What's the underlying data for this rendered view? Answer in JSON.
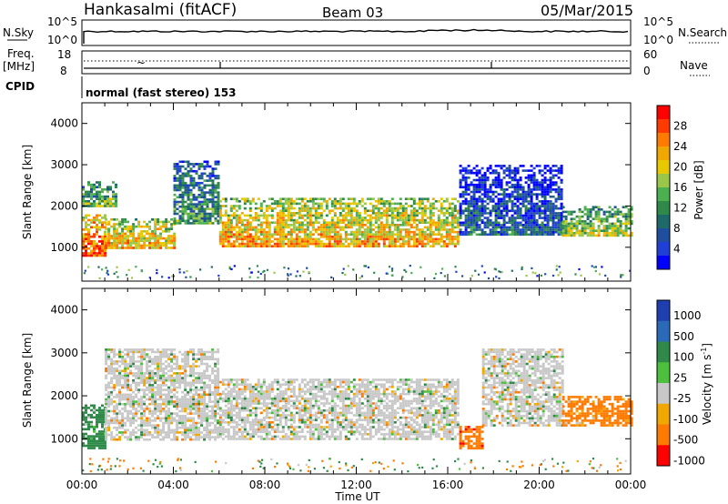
{
  "header": {
    "station": "Hankasalmi (fitACF)",
    "beam": "Beam 03",
    "date": "05/Mar/2015"
  },
  "strips": {
    "nsky_label": "N.Sky",
    "nsearch_label": "N.Search",
    "freq_label_top": "Freq.",
    "freq_label_unit": "[MHz]",
    "nave_label": "Nave",
    "cpid_label": "CPID",
    "cpid_text": "normal (fast stereo) 153",
    "noise_ticks": [
      "10^5",
      "10^0"
    ],
    "noise_ticks_right": [
      "10^5",
      "10^0"
    ],
    "freq_ticks": [
      "18",
      "8"
    ],
    "nave_ticks": [
      "60",
      "0"
    ]
  },
  "axes": {
    "ylabel": "Slant Range [km]",
    "yticks": [
      "4000",
      "3000",
      "2000",
      "1000"
    ],
    "xticks": [
      "00:00",
      "04:00",
      "08:00",
      "12:00",
      "16:00",
      "20:00",
      "00:00"
    ],
    "xlabel": "Time UT"
  },
  "power_colorbar": {
    "label": "Power [dB]",
    "ticks": [
      "28",
      "24",
      "20",
      "16",
      "12",
      "8",
      "4"
    ],
    "colors": [
      "#ff0000",
      "#ff3a00",
      "#ff7a00",
      "#f0a800",
      "#e8c800",
      "#9ac64a",
      "#4caf50",
      "#2f8a4a",
      "#1e6a6a",
      "#1f4e9e",
      "#1f3fd6",
      "#0000ff"
    ]
  },
  "velocity_colorbar": {
    "label": "Velocity [m s^-1]",
    "ticks": [
      "1000",
      "500",
      "100",
      "25",
      "-25",
      "-100",
      "-500",
      "-1000"
    ],
    "colors": [
      "#1f3fb0",
      "#2a6ab8",
      "#2f8a4a",
      "#4cbf3c",
      "#c8c8c8",
      "#f0a800",
      "#ff7a00",
      "#ff0000"
    ]
  },
  "chart_data": [
    {
      "type": "heatmap",
      "title": "Power",
      "xlabel": "Time UT",
      "ylabel": "Slant Range [km]",
      "x_range": [
        "00:00",
        "24:00"
      ],
      "ylim": [
        180,
        4500
      ],
      "colorbar": {
        "label": "Power [dB]",
        "range": [
          4,
          28
        ]
      },
      "regions": [
        {
          "t_start": 0.0,
          "t_end": 1.0,
          "r_start": 800,
          "r_end": 1800,
          "value_db": 26
        },
        {
          "t_start": 0.0,
          "t_end": 1.5,
          "r_start": 2000,
          "r_end": 2600,
          "value_db": 16
        },
        {
          "t_start": 1.0,
          "t_end": 4.0,
          "r_start": 1000,
          "r_end": 1700,
          "value_db": 22
        },
        {
          "t_start": 4.0,
          "t_end": 6.0,
          "r_start": 1600,
          "r_end": 3100,
          "value_db": 14
        },
        {
          "t_start": 6.0,
          "t_end": 16.5,
          "r_start": 1000,
          "r_end": 2200,
          "value_db": 22
        },
        {
          "t_start": 16.5,
          "t_end": 21.0,
          "r_start": 1300,
          "r_end": 3000,
          "value_db": 10
        },
        {
          "t_start": 21.0,
          "t_end": 24.0,
          "r_start": 1300,
          "r_end": 2000,
          "value_db": 18
        }
      ]
    },
    {
      "type": "heatmap",
      "title": "Velocity",
      "xlabel": "Time UT",
      "ylabel": "Slant Range [km]",
      "x_range": [
        "00:00",
        "24:00"
      ],
      "ylim": [
        180,
        4500
      ],
      "colorbar": {
        "label": "Velocity [m s^-1]",
        "range": [
          -1000,
          1000
        ]
      },
      "regions": [
        {
          "t_start": 0.0,
          "t_end": 1.0,
          "r_start": 800,
          "r_end": 1800,
          "value_ms": 150
        },
        {
          "t_start": 1.0,
          "t_end": 6.0,
          "r_start": 1000,
          "r_end": 3100,
          "value_ms": 0
        },
        {
          "t_start": 6.0,
          "t_end": 16.5,
          "r_start": 1000,
          "r_end": 2400,
          "value_ms": 0
        },
        {
          "t_start": 16.5,
          "t_end": 17.5,
          "r_start": 800,
          "r_end": 1300,
          "value_ms": -400
        },
        {
          "t_start": 17.5,
          "t_end": 21.0,
          "r_start": 1300,
          "r_end": 3100,
          "value_ms": 0
        },
        {
          "t_start": 21.0,
          "t_end": 24.0,
          "r_start": 1300,
          "r_end": 2000,
          "value_ms": -150
        }
      ]
    }
  ]
}
